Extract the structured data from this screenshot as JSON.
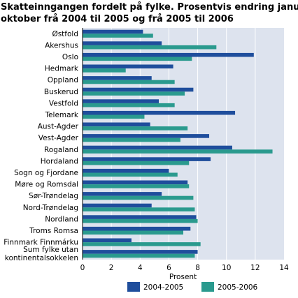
{
  "chart_data": {
    "type": "bar",
    "orientation": "horizontal",
    "title": "Skatteinngangen fordelt på fylke. Prosentvis endring januar-oktober frå 2004 til 2005 og frå 2005 til 2006",
    "title_lines": [
      "Skatteinngangen fordelt på fylke. Prosentvis endring januar-",
      "oktober frå 2004 til 2005 og frå 2005 til 2006"
    ],
    "xlabel": "Prosent",
    "ylabel": "",
    "xlim": [
      0,
      14
    ],
    "xticks": [
      0,
      2,
      4,
      6,
      8,
      10,
      12,
      14
    ],
    "grid": true,
    "legend_position": "bottom",
    "categories": [
      [
        "Østfold"
      ],
      [
        "Akershus"
      ],
      [
        "Oslo"
      ],
      [
        "Hedmark"
      ],
      [
        "Oppland"
      ],
      [
        "Buskerud"
      ],
      [
        "Vestfold"
      ],
      [
        "Telemark"
      ],
      [
        "Aust-Agder"
      ],
      [
        "Vest-Agder"
      ],
      [
        "Rogaland"
      ],
      [
        "Hordaland"
      ],
      [
        "Sogn og Fjordane"
      ],
      [
        "Møre og Romsdal"
      ],
      [
        "Sør-Trøndelag"
      ],
      [
        "Nord-Trøndelag"
      ],
      [
        "Nordland"
      ],
      [
        "Troms Romsa"
      ],
      [
        "Finnmark Finnmárku"
      ],
      [
        "Sum fylke utan",
        "kontinentalsokkelen"
      ]
    ],
    "series": [
      {
        "name": "2004-2005",
        "color": "#1f4e9c",
        "values": [
          4.2,
          5.5,
          11.9,
          6.3,
          4.8,
          7.7,
          5.3,
          10.6,
          4.7,
          8.8,
          10.4,
          8.9,
          6.0,
          7.3,
          5.5,
          4.8,
          7.9,
          7.5,
          3.4,
          8.0
        ]
      },
      {
        "name": "2005-2006",
        "color": "#2a9a8e",
        "values": [
          4.9,
          9.3,
          7.6,
          3.0,
          6.4,
          7.1,
          6.4,
          4.3,
          7.3,
          6.8,
          13.2,
          7.4,
          6.6,
          7.4,
          7.7,
          7.8,
          8.0,
          7.0,
          8.2,
          7.8
        ]
      }
    ]
  }
}
